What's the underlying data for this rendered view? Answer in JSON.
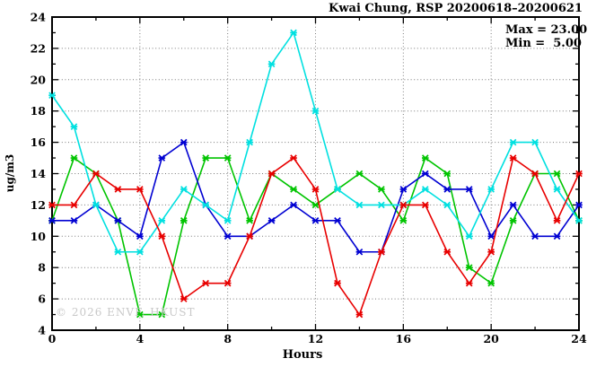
{
  "title": "Kwai Chung, RSP 20200618–20200621",
  "legend": {
    "max_label": "Max = 23.00",
    "min_label": "Min =  5.00"
  },
  "watermark": "© 2026 ENVF, HKUST",
  "chart_data": {
    "type": "line",
    "title": "Kwai Chung, RSP 20200618–20200621",
    "xlabel": "Hours",
    "ylabel": "ug/m3",
    "xlim": [
      0,
      24
    ],
    "ylim": [
      4,
      24
    ],
    "x": [
      0,
      1,
      2,
      3,
      4,
      5,
      6,
      7,
      8,
      9,
      10,
      11,
      12,
      13,
      14,
      15,
      16,
      17,
      18,
      19,
      20,
      21,
      22,
      23,
      24
    ],
    "series": [
      {
        "name": "series-green",
        "color": "#00c400",
        "values": [
          11,
          15,
          14,
          11,
          5,
          5,
          11,
          15,
          15,
          11,
          14,
          13,
          12,
          13,
          14,
          13,
          11,
          15,
          14,
          8,
          7,
          11,
          14,
          14,
          11
        ]
      },
      {
        "name": "series-blue",
        "color": "#0000d2",
        "values": [
          11,
          11,
          12,
          11,
          10,
          15,
          16,
          12,
          10,
          10,
          11,
          12,
          11,
          11,
          9,
          9,
          13,
          14,
          13,
          13,
          10,
          12,
          10,
          10,
          12
        ]
      },
      {
        "name": "series-cyan",
        "color": "#00e0e0",
        "values": [
          19,
          17,
          12,
          9,
          9,
          11,
          13,
          12,
          11,
          16,
          21,
          23,
          18,
          13,
          12,
          12,
          12,
          13,
          12,
          10,
          13,
          16,
          16,
          13,
          11
        ]
      },
      {
        "name": "series-red",
        "color": "#e80000",
        "values": [
          12,
          12,
          14,
          13,
          13,
          10,
          6,
          7,
          7,
          10,
          14,
          15,
          13,
          7,
          5,
          9,
          12,
          12,
          9,
          7,
          9,
          15,
          14,
          11,
          14
        ]
      }
    ],
    "stats": {
      "max": 23.0,
      "min": 5.0
    },
    "xticks_labeled": [
      0,
      4,
      8,
      12,
      16,
      20,
      24
    ],
    "xticks_minor_step": 2,
    "yticks_labeled": [
      4,
      6,
      8,
      10,
      12,
      14,
      16,
      18,
      20,
      22,
      24
    ],
    "yticks_minor_step": 1,
    "grid": {
      "x_at": [
        4,
        8,
        12,
        16,
        20
      ],
      "y_at": [
        6,
        8,
        10,
        12,
        14,
        16,
        18,
        20,
        22
      ],
      "style": "dotted",
      "color": "#7a7a7a"
    },
    "border_color": "#000000",
    "legend_position": "top-right-inside"
  }
}
